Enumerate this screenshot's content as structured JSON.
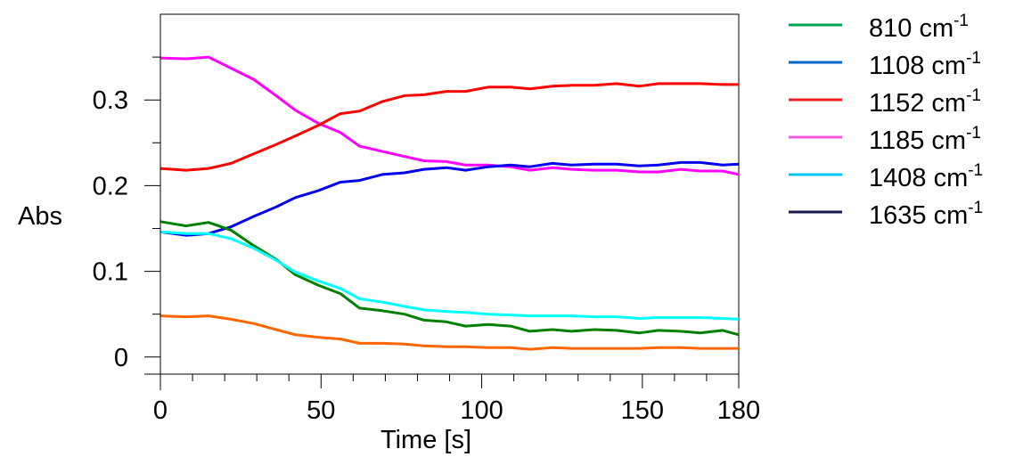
{
  "chart_data": {
    "type": "line",
    "xlabel": "Time [s]",
    "ylabel": "Abs",
    "xlim": [
      0,
      180
    ],
    "ylim": [
      -0.02,
      0.4
    ],
    "x_ticks": [
      {
        "value": 0,
        "label": "0"
      },
      {
        "value": 50,
        "label": "50"
      },
      {
        "value": 100,
        "label": "100"
      },
      {
        "value": 150,
        "label": "150"
      },
      {
        "value": 180,
        "label": "180"
      }
    ],
    "x_minor_ticks": [
      10,
      20,
      30,
      40,
      60,
      70,
      80,
      90,
      110,
      120,
      130,
      140,
      160,
      170
    ],
    "y_ticks": [
      {
        "value": 0,
        "label": "0"
      },
      {
        "value": 0.1,
        "label": "0.1"
      },
      {
        "value": 0.2,
        "label": "0.2"
      },
      {
        "value": 0.3,
        "label": "0.3"
      }
    ],
    "y_minor_ticks": [
      0.05,
      0.15,
      0.25,
      0.35
    ],
    "grid": false,
    "legend_position": "right",
    "legend": [
      {
        "name": "810 cm",
        "sup": "-1",
        "color": "#00a651"
      },
      {
        "name": "1108 cm",
        "sup": "-1",
        "color": "#0066cc"
      },
      {
        "name": "1152 cm",
        "sup": "-1",
        "color": "#ee1c1c"
      },
      {
        "name": "1185 cm",
        "sup": "-1",
        "color": "#f05ae0"
      },
      {
        "name": "1408 cm",
        "sup": "-1",
        "color": "#00c8ee"
      },
      {
        "name": "1635 cm",
        "sup": "-1",
        "color": "#1a1a4e"
      }
    ],
    "x": [
      0,
      8,
      15,
      22,
      29,
      36,
      42,
      49,
      56,
      62,
      69,
      76,
      82,
      89,
      95,
      102,
      109,
      115,
      122,
      128,
      135,
      142,
      149,
      155,
      162,
      168,
      175,
      180
    ],
    "series": [
      {
        "color": "#ff00ff",
        "values": [
          0.349,
          0.348,
          0.35,
          0.337,
          0.324,
          0.305,
          0.288,
          0.273,
          0.262,
          0.246,
          0.24,
          0.234,
          0.229,
          0.228,
          0.224,
          0.224,
          0.222,
          0.218,
          0.221,
          0.219,
          0.218,
          0.218,
          0.216,
          0.216,
          0.219,
          0.217,
          0.217,
          0.213
        ]
      },
      {
        "color": "#ff0000",
        "values": [
          0.22,
          0.218,
          0.22,
          0.226,
          0.237,
          0.248,
          0.258,
          0.27,
          0.284,
          0.287,
          0.298,
          0.305,
          0.306,
          0.31,
          0.31,
          0.315,
          0.315,
          0.313,
          0.316,
          0.317,
          0.317,
          0.319,
          0.316,
          0.319,
          0.319,
          0.319,
          0.318,
          0.318
        ]
      },
      {
        "color": "#0000ee",
        "values": [
          0.146,
          0.142,
          0.144,
          0.152,
          0.164,
          0.175,
          0.186,
          0.194,
          0.204,
          0.206,
          0.213,
          0.215,
          0.219,
          0.221,
          0.218,
          0.222,
          0.224,
          0.222,
          0.226,
          0.224,
          0.225,
          0.225,
          0.223,
          0.224,
          0.227,
          0.227,
          0.224,
          0.225
        ]
      },
      {
        "color": "#008000",
        "values": [
          0.158,
          0.153,
          0.157,
          0.148,
          0.13,
          0.114,
          0.096,
          0.084,
          0.074,
          0.057,
          0.054,
          0.05,
          0.043,
          0.041,
          0.036,
          0.038,
          0.036,
          0.03,
          0.032,
          0.03,
          0.032,
          0.031,
          0.028,
          0.031,
          0.03,
          0.028,
          0.031,
          0.026
        ]
      },
      {
        "color": "#00ffff",
        "values": [
          0.146,
          0.144,
          0.144,
          0.138,
          0.127,
          0.113,
          0.099,
          0.089,
          0.08,
          0.068,
          0.064,
          0.059,
          0.055,
          0.053,
          0.052,
          0.05,
          0.049,
          0.048,
          0.048,
          0.048,
          0.047,
          0.047,
          0.045,
          0.046,
          0.046,
          0.046,
          0.045,
          0.044
        ]
      },
      {
        "color": "#ff6600",
        "values": [
          0.048,
          0.047,
          0.048,
          0.044,
          0.039,
          0.032,
          0.026,
          0.023,
          0.021,
          0.016,
          0.016,
          0.015,
          0.013,
          0.012,
          0.012,
          0.011,
          0.011,
          0.009,
          0.011,
          0.01,
          0.01,
          0.01,
          0.01,
          0.011,
          0.011,
          0.01,
          0.01,
          0.01
        ]
      }
    ]
  }
}
